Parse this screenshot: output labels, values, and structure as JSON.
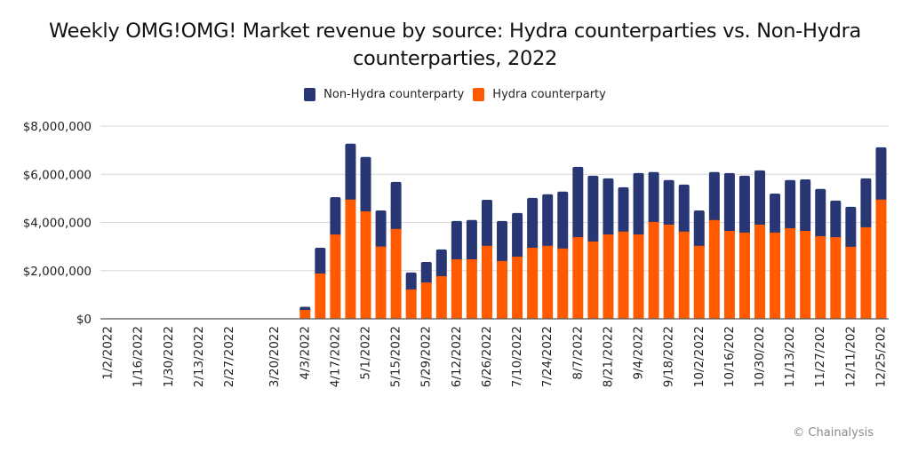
{
  "chart_data": {
    "type": "bar",
    "stacked": true,
    "title": "Weekly OMG!OMG! Market revenue by source: Hydra counterparties vs. Non-Hydra counterparties, 2022",
    "title_lines": [
      "Weekly OMG!OMG! Market revenue by source: Hydra counterparties vs. Non-Hydra",
      "counterparties, 2022"
    ],
    "xlabel": "",
    "ylabel": "",
    "ylim": [
      0,
      8000000
    ],
    "yticks": [
      0,
      2000000,
      4000000,
      6000000,
      8000000
    ],
    "ytick_labels": [
      "$0",
      "$2,000,000",
      "$4,000,000",
      "$6,000,000",
      "$8,000,000"
    ],
    "grid": true,
    "legend_position": "top-center",
    "xtick_labels": [
      "1/2/2022",
      "1/16/2022",
      "1/30/2022",
      "2/13/2022",
      "2/27/2022",
      "3/20/2022",
      "4/3/2022",
      "4/17/2022",
      "5/1/2022",
      "5/15/2022",
      "5/29/2022",
      "6/12/2022",
      "6/26/2022",
      "7/10/2022",
      "7/24/2022",
      "8/7/2022",
      "8/21/2022",
      "9/4/2022",
      "9/18/2022",
      "10/2/2022",
      "10/16/202",
      "10/30/202",
      "11/13/202",
      "11/27/202",
      "12/11/202",
      "12/25/202"
    ],
    "categories": [
      "1/2/2022",
      "1/9/2022",
      "1/16/2022",
      "1/23/2022",
      "1/30/2022",
      "2/6/2022",
      "2/13/2022",
      "2/20/2022",
      "2/27/2022",
      "3/6/2022",
      "3/13/2022",
      "3/20/2022",
      "3/27/2022",
      "4/3/2022",
      "4/10/2022",
      "4/17/2022",
      "4/24/2022",
      "5/1/2022",
      "5/8/2022",
      "5/15/2022",
      "5/22/2022",
      "5/29/2022",
      "6/5/2022",
      "6/12/2022",
      "6/19/2022",
      "6/26/2022",
      "7/3/2022",
      "7/10/2022",
      "7/17/2022",
      "7/24/2022",
      "7/31/2022",
      "8/7/2022",
      "8/14/2022",
      "8/21/2022",
      "8/28/2022",
      "9/4/2022",
      "9/11/2022",
      "9/18/2022",
      "9/25/2022",
      "10/2/2022",
      "10/9/2022",
      "10/16/2022",
      "10/23/2022",
      "10/30/2022",
      "11/6/2022",
      "11/13/2022",
      "11/20/2022",
      "11/27/2022",
      "12/4/2022",
      "12/11/2022",
      "12/18/2022",
      "12/25/2022"
    ],
    "series": [
      {
        "name": "Hydra counterparty",
        "color": "#ff5a00",
        "values": [
          0,
          0,
          0,
          0,
          0,
          0,
          0,
          0,
          0,
          0,
          0,
          0,
          0,
          370000,
          1880000,
          3500000,
          4950000,
          4460000,
          3000000,
          3730000,
          1220000,
          1510000,
          1770000,
          2470000,
          2470000,
          3030000,
          2400000,
          2580000,
          2950000,
          3030000,
          2920000,
          3390000,
          3210000,
          3500000,
          3620000,
          3500000,
          4020000,
          3910000,
          3620000,
          3030000,
          4100000,
          3650000,
          3580000,
          3910000,
          3580000,
          3760000,
          3650000,
          3430000,
          3390000,
          2990000,
          3800000,
          4950000
        ]
      },
      {
        "name": "Non-Hydra counterparty",
        "color": "#283673",
        "values": [
          0,
          0,
          0,
          0,
          0,
          0,
          0,
          0,
          0,
          0,
          0,
          0,
          0,
          130000,
          1070000,
          1550000,
          2320000,
          2260000,
          1500000,
          1950000,
          700000,
          850000,
          1110000,
          1590000,
          1630000,
          1910000,
          1660000,
          1810000,
          2070000,
          2140000,
          2360000,
          2920000,
          2730000,
          2330000,
          1840000,
          2550000,
          2070000,
          1850000,
          1950000,
          1470000,
          1990000,
          2400000,
          2360000,
          2250000,
          1620000,
          2000000,
          2140000,
          1960000,
          1520000,
          1660000,
          2030000,
          2170000
        ]
      }
    ],
    "legend": [
      {
        "label": "Non-Hydra counterparty",
        "color": "#283673"
      },
      {
        "label": "Hydra counterparty",
        "color": "#ff5a00"
      }
    ],
    "credit": "© Chainalysis"
  }
}
